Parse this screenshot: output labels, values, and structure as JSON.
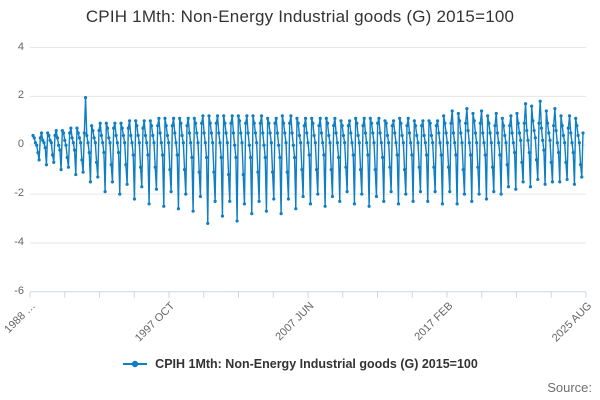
{
  "chart": {
    "title": "CPIH 1Mth: Non-Energy Industrial goods (G) 2015=100",
    "source_label": "Source:",
    "colors": {
      "series": "#0f7ec3",
      "grid": "#e6e6e6",
      "axis": "#ccd6eb",
      "tick_label": "#666666",
      "title_text": "#333333"
    }
  },
  "legend": {
    "label": "CPIH 1Mth: Non-Energy Industrial goods (G) 2015=100"
  },
  "chart_data": {
    "type": "line",
    "title": "CPIH 1Mth: Non-Energy Industrial goods (G) 2015=100",
    "xlabel": "",
    "ylabel": "",
    "x_unit": "month",
    "x_start": "1988 FEB",
    "x_end": "2025 AUG",
    "x_tick_labels": [
      "1988 …",
      "1997 OCT",
      "2007 JUN",
      "2017 FEB",
      "2025 AUG"
    ],
    "ylim": [
      -6,
      4
    ],
    "yticks": [
      4,
      2,
      0,
      -2,
      -4,
      -6
    ],
    "ytick_labels": [
      "4",
      "2",
      "0",
      "-2",
      "-4",
      "-6"
    ],
    "grid": "horizontal",
    "legend_position": "bottom",
    "marker": "circle",
    "series": [
      {
        "name": "CPIH 1Mth: Non-Energy Industrial goods (G) 2015=100",
        "color": "#0f7ec3",
        "values": [
          0.4,
          0.3,
          0.1,
          0.0,
          -0.3,
          -0.6,
          0.3,
          0.5,
          0.2,
          0.1,
          -0.1,
          -0.8,
          0.5,
          0.4,
          0.2,
          0.1,
          -0.4,
          -0.7,
          0.4,
          0.6,
          0.3,
          0.0,
          -0.2,
          -1.0,
          0.6,
          0.5,
          0.2,
          0.0,
          -0.5,
          -0.9,
          0.5,
          0.7,
          0.3,
          0.1,
          -0.2,
          -1.2,
          0.7,
          0.5,
          0.3,
          0.1,
          -0.6,
          -1.1,
          0.5,
          1.95,
          0.4,
          0.1,
          -0.3,
          -1.5,
          0.8,
          0.6,
          0.3,
          0.1,
          -0.7,
          -1.3,
          0.6,
          0.9,
          0.4,
          0.1,
          -0.3,
          -1.9,
          0.9,
          0.7,
          0.3,
          0.1,
          -0.8,
          -1.5,
          0.7,
          0.9,
          0.4,
          0.1,
          -0.3,
          -2.0,
          0.9,
          0.7,
          0.4,
          0.1,
          -0.8,
          -1.6,
          0.7,
          1.0,
          0.4,
          0.1,
          -0.4,
          -2.2,
          1.0,
          0.8,
          0.4,
          0.1,
          -0.9,
          -1.7,
          0.7,
          1.0,
          0.4,
          0.1,
          -0.4,
          -2.4,
          1.0,
          0.8,
          0.4,
          0.1,
          -0.9,
          -1.8,
          0.8,
          1.1,
          0.5,
          0.1,
          -0.4,
          -2.5,
          1.1,
          0.8,
          0.4,
          0.1,
          -1.0,
          -1.9,
          0.8,
          1.1,
          0.5,
          0.1,
          -0.4,
          -2.6,
          1.1,
          0.9,
          0.4,
          0.1,
          -1.0,
          -2.0,
          0.8,
          1.1,
          0.5,
          0.1,
          -0.5,
          -2.7,
          1.1,
          0.9,
          0.5,
          0.1,
          -1.1,
          -2.1,
          0.9,
          1.2,
          0.5,
          0.1,
          -0.5,
          -3.2,
          1.2,
          0.9,
          0.5,
          0.1,
          -1.1,
          -2.3,
          0.9,
          1.2,
          0.5,
          0.1,
          -0.5,
          -2.9,
          1.2,
          0.9,
          0.5,
          0.1,
          -1.2,
          -2.3,
          0.9,
          1.2,
          0.5,
          0.0,
          -0.5,
          -3.1,
          1.2,
          1.0,
          0.5,
          0.1,
          -1.2,
          -2.4,
          0.9,
          1.2,
          0.5,
          0.0,
          -0.5,
          -2.8,
          1.2,
          0.9,
          0.5,
          0.1,
          -1.1,
          -2.3,
          0.9,
          1.2,
          0.5,
          0.0,
          -0.5,
          -2.7,
          1.1,
          0.9,
          0.5,
          0.1,
          -1.1,
          -2.2,
          0.9,
          1.1,
          0.5,
          0.0,
          -0.5,
          -2.8,
          1.2,
          0.9,
          0.5,
          0.1,
          -1.1,
          -2.2,
          0.9,
          1.2,
          0.5,
          0.0,
          -0.5,
          -2.6,
          1.1,
          0.9,
          0.4,
          0.1,
          -1.0,
          -2.1,
          0.8,
          1.1,
          0.5,
          0.1,
          -0.4,
          -2.4,
          1.1,
          0.9,
          0.4,
          0.1,
          -1.0,
          -2.0,
          0.8,
          1.1,
          0.5,
          0.1,
          -0.4,
          -2.5,
          1.1,
          0.9,
          0.4,
          0.1,
          -1.0,
          -2.1,
          0.8,
          1.1,
          0.5,
          0.1,
          -0.5,
          -2.3,
          1.0,
          0.8,
          0.4,
          0.1,
          -0.9,
          -1.9,
          0.8,
          1.0,
          0.5,
          0.1,
          -0.4,
          -2.4,
          1.1,
          0.9,
          0.4,
          0.1,
          -1.0,
          -2.0,
          0.8,
          1.1,
          0.5,
          0.1,
          -0.4,
          -2.5,
          1.1,
          0.9,
          0.5,
          0.1,
          -1.0,
          -2.1,
          0.9,
          1.1,
          0.5,
          0.1,
          -0.5,
          -2.3,
          1.0,
          0.9,
          0.4,
          0.1,
          -0.9,
          -1.9,
          0.8,
          1.0,
          0.5,
          0.1,
          -0.4,
          -2.4,
          1.1,
          0.9,
          0.4,
          0.1,
          -1.0,
          -2.0,
          0.8,
          1.1,
          0.5,
          0.1,
          -0.4,
          -2.3,
          1.0,
          0.8,
          0.4,
          0.1,
          -0.9,
          -1.9,
          0.8,
          1.0,
          0.4,
          0.1,
          -0.4,
          -2.3,
          1.0,
          0.9,
          0.4,
          0.1,
          -0.9,
          -1.9,
          0.8,
          1.0,
          0.5,
          0.1,
          -0.4,
          -2.4,
          1.2,
          0.9,
          0.5,
          0.1,
          -0.9,
          -1.9,
          0.9,
          1.4,
          0.5,
          0.1,
          -0.4,
          -2.4,
          1.3,
          1.0,
          0.5,
          0.1,
          -1.0,
          -2.0,
          0.9,
          1.5,
          0.6,
          0.1,
          -0.4,
          -2.3,
          1.3,
          1.0,
          0.5,
          0.1,
          -0.9,
          -2.0,
          0.9,
          1.4,
          0.5,
          0.1,
          -0.4,
          -2.2,
          1.2,
          0.9,
          0.5,
          0.1,
          -0.9,
          -1.9,
          0.8,
          1.3,
          0.5,
          0.1,
          -0.4,
          -2.0,
          1.1,
          0.8,
          0.4,
          0.1,
          -0.8,
          -1.7,
          0.8,
          1.2,
          0.5,
          0.1,
          -0.3,
          -1.8,
          1.3,
          0.9,
          0.5,
          0.2,
          -0.7,
          -1.5,
          0.9,
          1.7,
          0.6,
          0.2,
          -0.3,
          -1.7,
          1.6,
          1.0,
          0.6,
          0.3,
          -0.6,
          -1.4,
          0.9,
          1.8,
          0.7,
          0.2,
          -0.2,
          -1.6,
          1.4,
          0.9,
          0.5,
          0.2,
          -0.7,
          -1.5,
          0.8,
          1.5,
          0.6,
          0.1,
          -0.3,
          -1.5,
          1.2,
          0.8,
          0.4,
          0.1,
          -0.7,
          -1.4,
          0.7,
          1.2,
          0.5,
          0.1,
          -0.3,
          -1.6,
          1.1,
          0.8,
          0.4,
          0.1,
          -0.8,
          -1.3,
          0.5
        ]
      }
    ]
  }
}
